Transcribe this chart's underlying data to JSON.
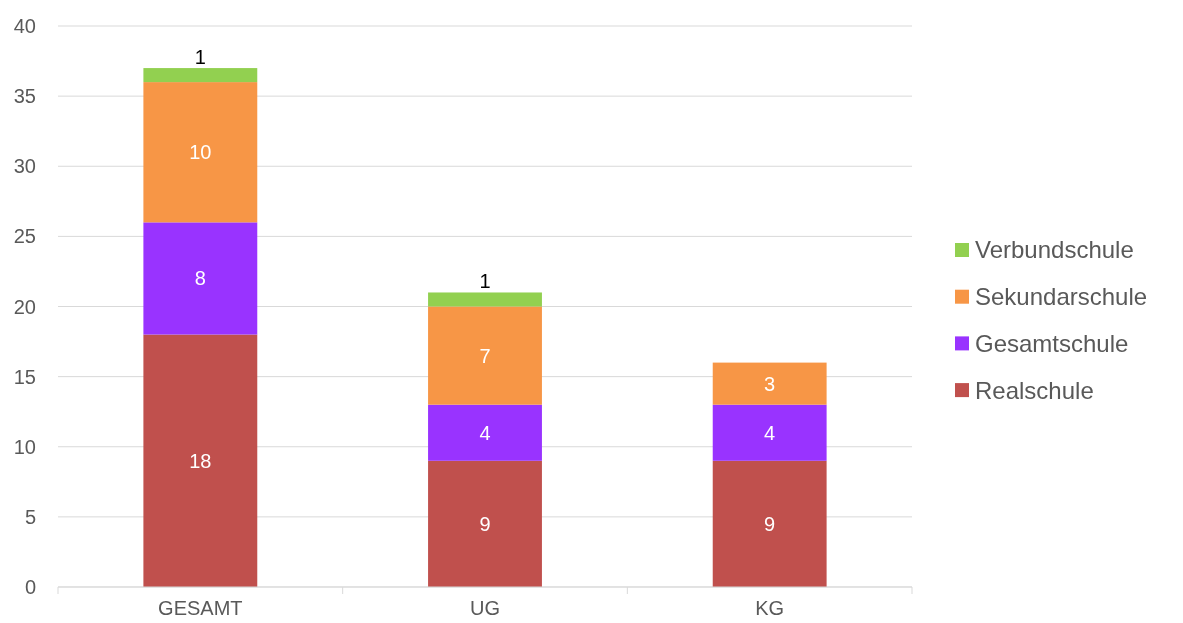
{
  "chart_data": {
    "type": "bar",
    "stacked": true,
    "categories": [
      "GESAMT",
      "UG",
      "KG"
    ],
    "series": [
      {
        "name": "Realschule",
        "color": "#c0504d",
        "values": [
          18,
          9,
          9
        ]
      },
      {
        "name": "Gesamtschule",
        "color": "#9933ff",
        "values": [
          8,
          4,
          4
        ]
      },
      {
        "name": "Sekundarschule",
        "color": "#f79646",
        "values": [
          10,
          7,
          3
        ]
      },
      {
        "name": "Verbundschule",
        "color": "#92d050",
        "values": [
          1,
          1,
          null
        ]
      }
    ],
    "ylim": [
      0,
      40
    ],
    "yticks": [
      0,
      5,
      10,
      15,
      20,
      25,
      30,
      35,
      40
    ],
    "grid": "y",
    "legend": "right",
    "data_labels": true
  }
}
